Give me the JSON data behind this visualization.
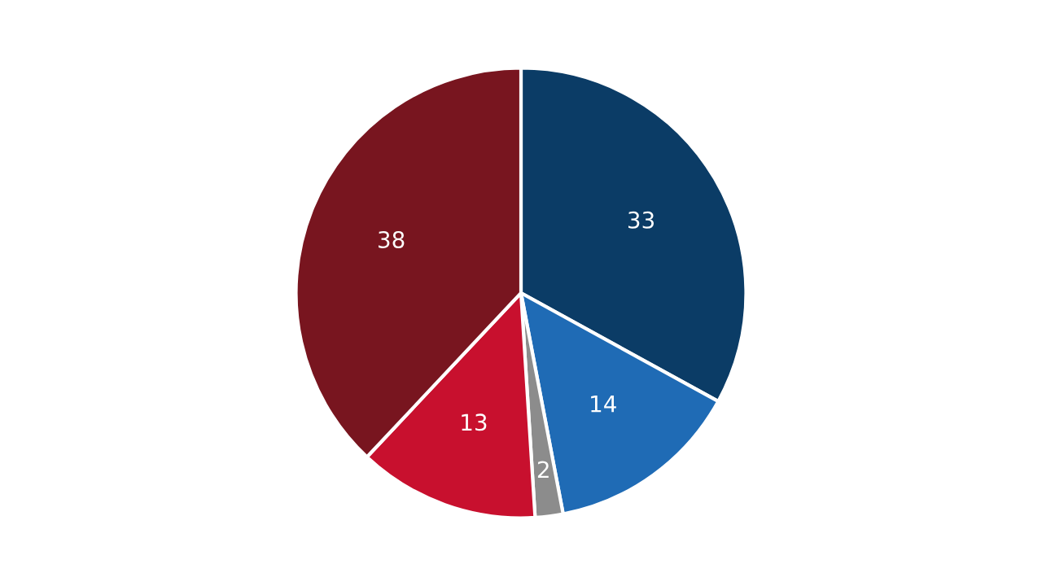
{
  "chart_data": {
    "type": "pie",
    "categories": [
      null,
      null,
      null,
      null,
      null
    ],
    "values": [
      33,
      14,
      2,
      13,
      38
    ],
    "colors": [
      "#0b3c66",
      "#1f6bb5",
      "#8c8c8c",
      "#c8102e",
      "#78151f"
    ],
    "data_labels": true
  }
}
